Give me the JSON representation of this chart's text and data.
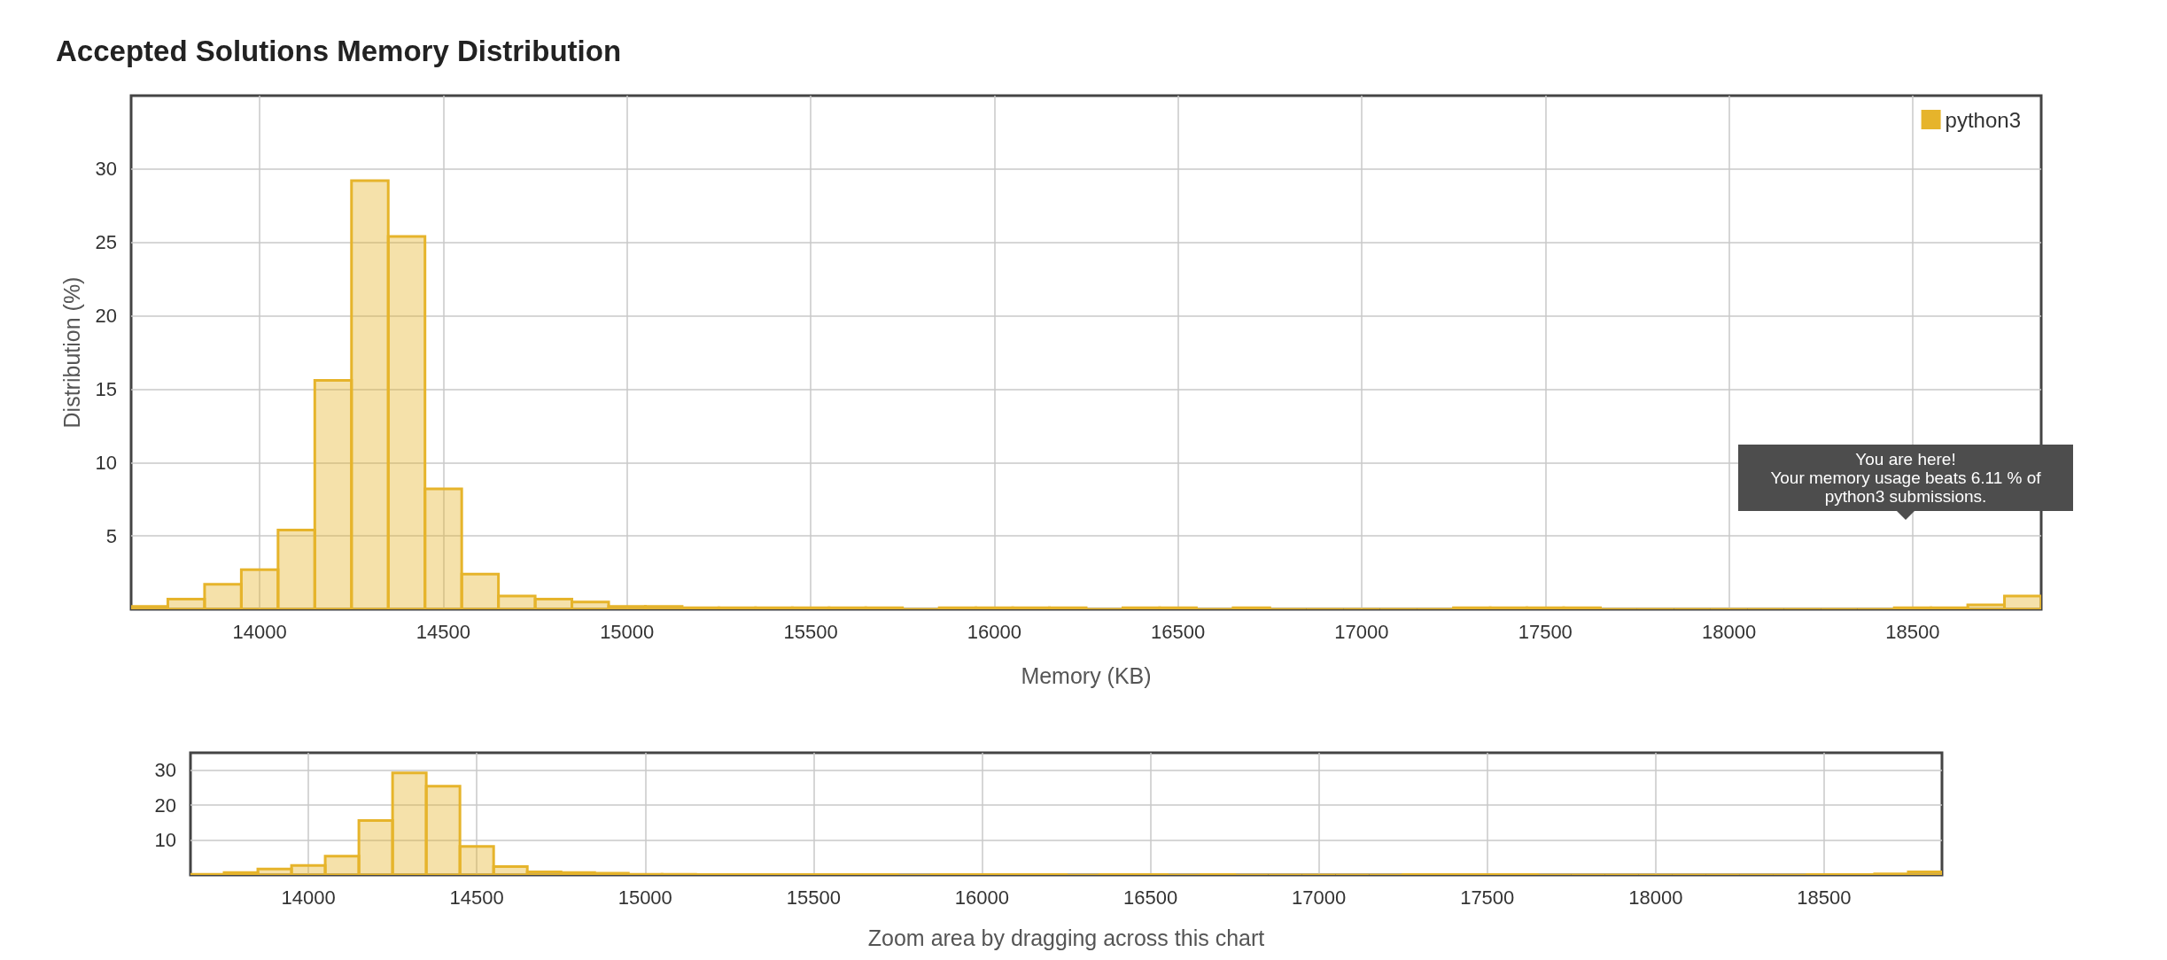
{
  "chart_data": [
    {
      "type": "histogram",
      "title": "Accepted Solutions Memory Distribution",
      "xlabel": "Memory (KB)",
      "ylabel": "Distribution (%)",
      "bins": [
        13650,
        13750,
        13850,
        13950,
        14050,
        14150,
        14250,
        14350,
        14450,
        14550,
        14650,
        14750,
        14850,
        14950,
        15050,
        15150,
        15250,
        15350,
        15450,
        15550,
        15650,
        15750,
        15850,
        15950,
        16050,
        16150,
        16250,
        16350,
        16450,
        16550,
        16650,
        16750,
        16850,
        16950,
        17050,
        17150,
        17250,
        17350,
        17450,
        17550,
        17650,
        17750,
        17850,
        17950,
        18050,
        18150,
        18250,
        18350,
        18450,
        18550,
        18650,
        18750,
        18850
      ],
      "series": [
        {
          "name": "python3",
          "color": "#e6b42b",
          "values": [
            0.2,
            0.7,
            1.7,
            2.7,
            5.4,
            15.6,
            29.2,
            25.4,
            8.2,
            2.4,
            0.9,
            0.7,
            0.5,
            0.2,
            0.2,
            0.1,
            0.1,
            0.1,
            0.1,
            0.1,
            0.1,
            0,
            0.1,
            0.1,
            0.1,
            0.1,
            0,
            0.1,
            0.1,
            0,
            0.1,
            0,
            0,
            0,
            0,
            0,
            0.1,
            0.1,
            0.1,
            0.1,
            0,
            0,
            0,
            0,
            0,
            0,
            0,
            0,
            0.1,
            0.1,
            0.3,
            0.9
          ]
        }
      ],
      "xlim": [
        13650,
        18850
      ],
      "xticks": [
        14000,
        14500,
        15000,
        15500,
        16000,
        16500,
        17000,
        17500,
        18000,
        18500
      ],
      "ylim": [
        0,
        35
      ],
      "yticks": [
        5,
        10,
        15,
        20,
        25,
        30
      ],
      "grid": true,
      "legend": "top right",
      "annotations": [
        "You are here!\nYour memory usage beats 6.11 % of\npython3 submissions."
      ]
    },
    {
      "type": "histogram",
      "xlabel": "Zoom area by dragging across this chart",
      "bins": [
        13650,
        13750,
        13850,
        13950,
        14050,
        14150,
        14250,
        14350,
        14450,
        14550,
        14650,
        14750,
        14850,
        14950,
        15050,
        15150,
        15250,
        15350,
        15450,
        15550,
        15650,
        15750,
        15850,
        15950,
        16050,
        16150,
        16250,
        16350,
        16450,
        16550,
        16650,
        16750,
        16850,
        16950,
        17050,
        17150,
        17250,
        17350,
        17450,
        17550,
        17650,
        17750,
        17850,
        17950,
        18050,
        18150,
        18250,
        18350,
        18450,
        18550,
        18650,
        18750,
        18850
      ],
      "series": [
        {
          "color": "#e6b42b",
          "values": [
            0.2,
            0.7,
            1.7,
            2.7,
            5.4,
            15.6,
            29.2,
            25.4,
            8.2,
            2.4,
            0.9,
            0.7,
            0.5,
            0.2,
            0.2,
            0.1,
            0.1,
            0.1,
            0.1,
            0.1,
            0.1,
            0,
            0.1,
            0.1,
            0.1,
            0.1,
            0,
            0.1,
            0.1,
            0,
            0.1,
            0,
            0,
            0,
            0,
            0,
            0.1,
            0.1,
            0.1,
            0.1,
            0,
            0,
            0,
            0,
            0,
            0,
            0,
            0,
            0.1,
            0.1,
            0.3,
            0.9
          ]
        }
      ],
      "xlim": [
        13650,
        18850
      ],
      "xticks": [
        14000,
        14500,
        15000,
        15500,
        16000,
        16500,
        17000,
        17500,
        18000,
        18500
      ],
      "ylim": [
        0,
        35
      ],
      "yticks": [
        10,
        20,
        30
      ],
      "grid": true
    }
  ]
}
